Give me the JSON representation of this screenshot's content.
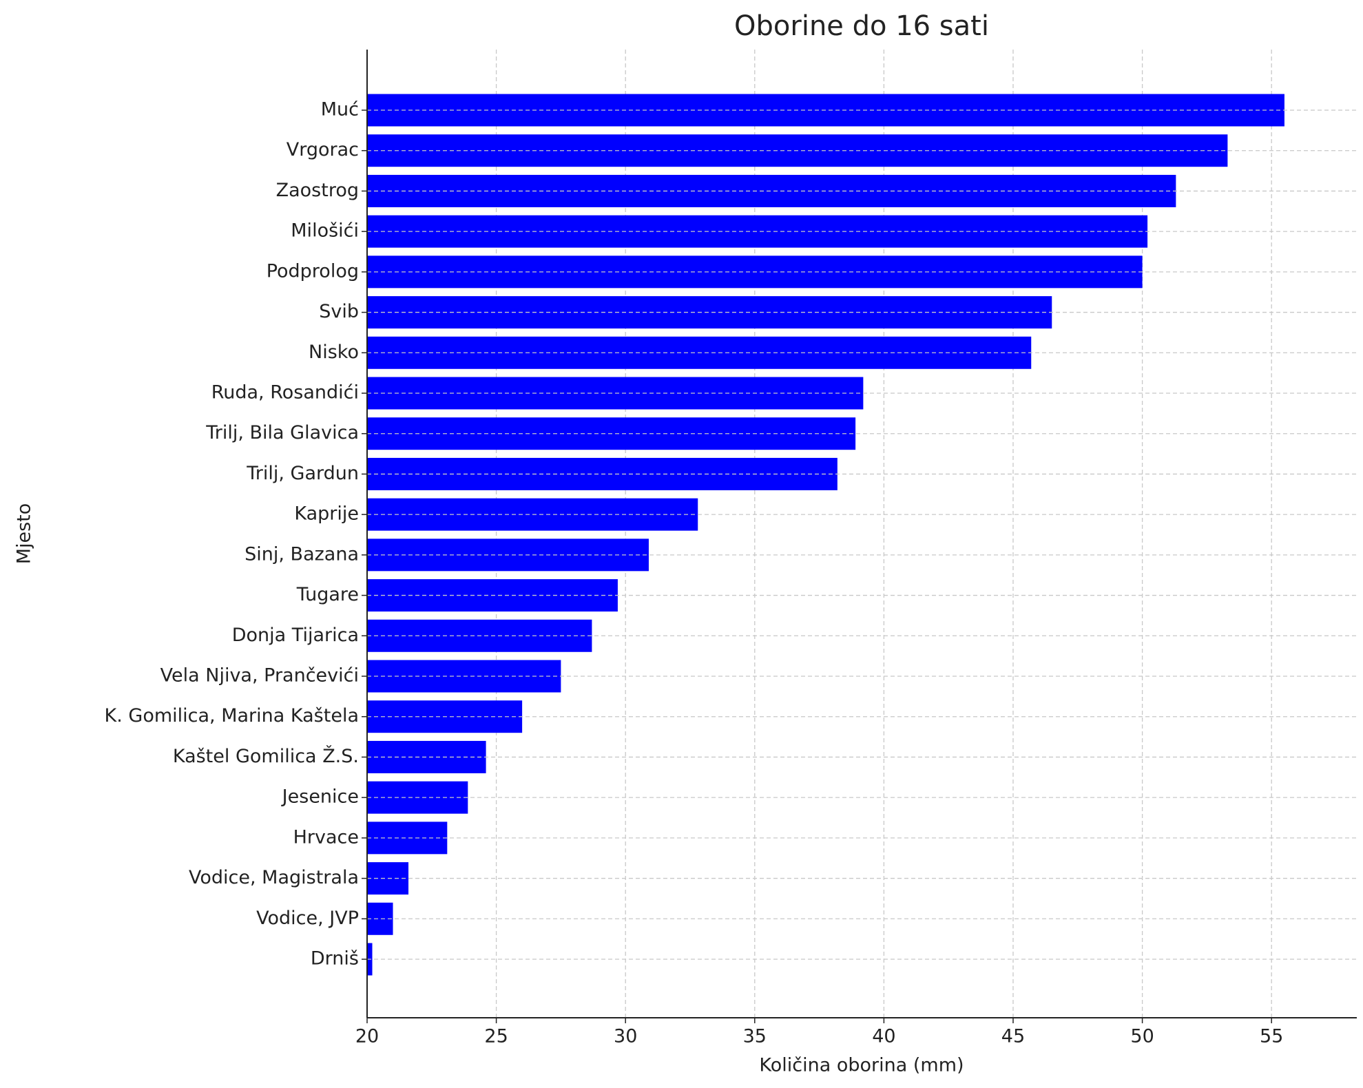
{
  "chart_data": {
    "type": "bar",
    "orientation": "horizontal",
    "title": "Oborine do 16 sati",
    "x_label": "Količina oborina (mm)",
    "y_label": "Mjesto",
    "categories": [
      "Muć",
      "Vrgorac",
      "Zaostrog",
      "Milošići",
      "Podprolog",
      "Svib",
      "Nisko",
      "Ruda, Rosandići",
      "Trilj, Bila Glavica",
      "Trilj, Gardun",
      "Kaprije",
      "Sinj, Bazana",
      "Tugare",
      "Donja Tijarica",
      "Vela Njiva, Prančevići",
      "K. Gomilica, Marina Kaštela",
      "Kaštel Gomilica Ž.S.",
      "Jesenice",
      "Hrvace",
      "Vodice, Magistrala",
      "Vodice, JVP",
      "Drniš"
    ],
    "values": [
      55.5,
      53.3,
      51.3,
      50.2,
      50.0,
      46.5,
      45.7,
      39.2,
      38.9,
      38.2,
      32.8,
      30.9,
      29.7,
      28.7,
      27.5,
      26.0,
      24.6,
      23.9,
      23.1,
      21.6,
      21.0,
      20.2
    ],
    "color": "#0000ff",
    "xlim": [
      20,
      58.3
    ],
    "xticks": [
      20,
      25,
      30,
      35,
      40,
      45,
      50,
      55
    ],
    "grid": true
  }
}
